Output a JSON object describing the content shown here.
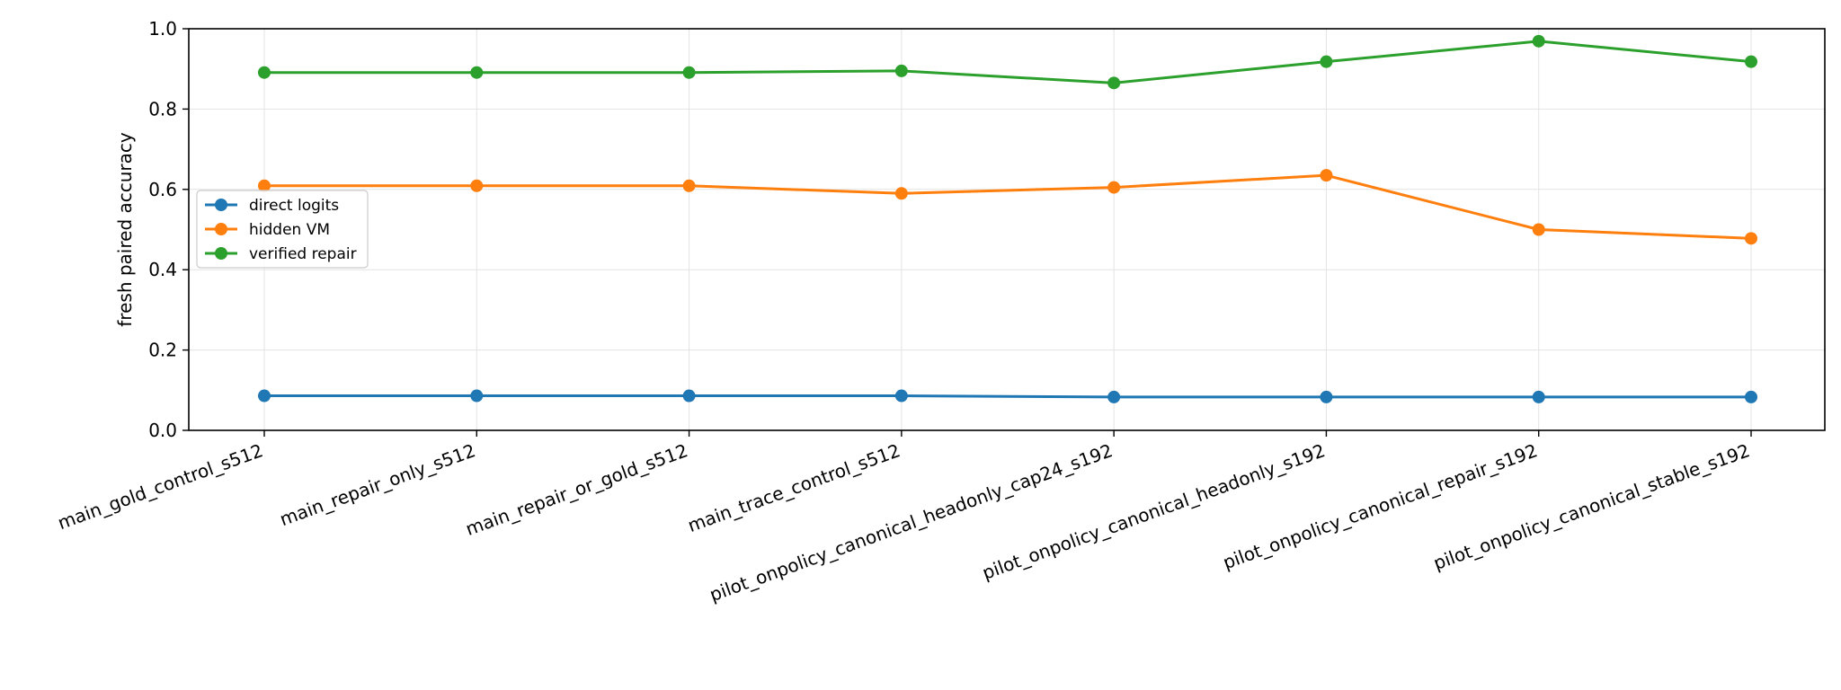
{
  "chart_data": {
    "type": "line",
    "title": "",
    "xlabel": "",
    "ylabel": "fresh paired accuracy",
    "ylim": [
      0,
      1
    ],
    "yticks": [
      "0.0",
      "0.2",
      "0.4",
      "0.6",
      "0.8",
      "1.0"
    ],
    "grid": true,
    "legend_position": "center-left",
    "categories": [
      "main_gold_control_s512",
      "main_repair_only_s512",
      "main_repair_or_gold_s512",
      "main_trace_control_s512",
      "pilot_onpolicy_canonical_headonly_cap24_s192",
      "pilot_onpolicy_canonical_headonly_s192",
      "pilot_onpolicy_canonical_repair_s192",
      "pilot_onpolicy_canonical_stable_s192"
    ],
    "series": [
      {
        "name": "direct logits",
        "color": "#1f77b4",
        "values": [
          0.086,
          0.086,
          0.086,
          0.086,
          0.083,
          0.083,
          0.083,
          0.083
        ]
      },
      {
        "name": "hidden VM",
        "color": "#ff7f0e",
        "values": [
          0.609,
          0.609,
          0.609,
          0.59,
          0.605,
          0.635,
          0.5,
          0.478
        ]
      },
      {
        "name": "verified repair",
        "color": "#2ca02c",
        "values": [
          0.891,
          0.891,
          0.891,
          0.895,
          0.865,
          0.918,
          0.969,
          0.918
        ]
      }
    ]
  }
}
